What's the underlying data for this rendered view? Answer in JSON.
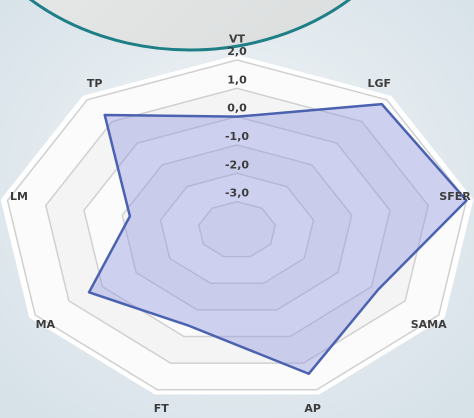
{
  "chart_data": {
    "type": "radar",
    "categories": [
      "VT",
      "LGF",
      "SFER",
      "SAMA",
      "AP",
      "FT",
      "MA",
      "LM",
      "TP"
    ],
    "values": [
      0.0,
      1.8,
      2.0,
      0.2,
      1.4,
      -0.4,
      0.4,
      -1.2,
      1.3
    ],
    "color": "#4a62b0",
    "ylim": [
      -4,
      2
    ],
    "yticks": [
      {
        "value": 2,
        "label": "2,0"
      },
      {
        "value": 1,
        "label": "1,0"
      },
      {
        "value": 0,
        "label": "0,0"
      },
      {
        "value": -1,
        "label": "-1,0"
      },
      {
        "value": -2,
        "label": "-2,0"
      },
      {
        "value": -3,
        "label": "-3,0"
      }
    ],
    "grid": true
  }
}
